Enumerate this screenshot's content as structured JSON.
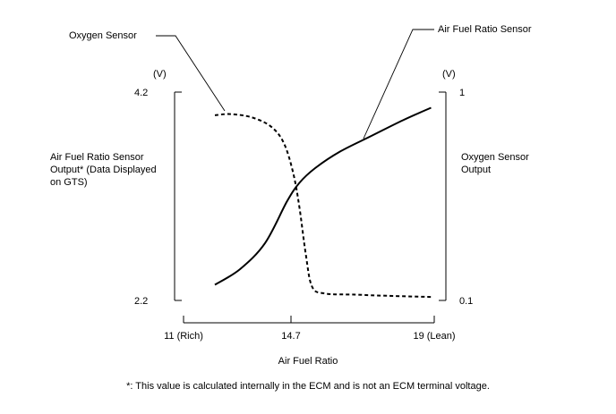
{
  "chart_data": {
    "type": "line",
    "xlabel": "Air Fuel Ratio",
    "x_ticks": [
      "11 (Rich)",
      "14.7",
      "19 (Lean)"
    ],
    "xlim": [
      11,
      19
    ],
    "left_axis": {
      "label_lines": [
        "Air Fuel Ratio Sensor",
        "Output* (Data Displayed",
        "on GTS)"
      ],
      "unit": "(V)",
      "ticks": [
        "4.2",
        "2.2"
      ],
      "ylim": [
        2.2,
        4.2
      ]
    },
    "right_axis": {
      "label_lines": [
        "Oxygen Sensor",
        "Output"
      ],
      "unit": "(V)",
      "ticks": [
        "1",
        "0.1"
      ],
      "ylim": [
        0.1,
        1
      ]
    },
    "series": [
      {
        "name": "Air Fuel Ratio Sensor",
        "axis": "left",
        "style": "solid",
        "x": [
          12.0,
          12.8,
          13.6,
          14.3,
          14.7,
          15.2,
          16.0,
          17.0,
          18.0,
          18.9
        ],
        "y": [
          2.35,
          2.5,
          2.75,
          3.15,
          3.33,
          3.47,
          3.63,
          3.78,
          3.93,
          4.05
        ]
      },
      {
        "name": "Oxygen Sensor",
        "axis": "right",
        "style": "dashed",
        "x": [
          12.0,
          12.5,
          13.2,
          13.8,
          14.2,
          14.5,
          14.7,
          14.9,
          15.1,
          15.5,
          16.5,
          17.5,
          18.9
        ],
        "y": [
          0.9,
          0.905,
          0.89,
          0.85,
          0.78,
          0.65,
          0.5,
          0.3,
          0.16,
          0.13,
          0.125,
          0.12,
          0.115
        ]
      }
    ],
    "footnote": "*: This value is calculated internally in the ECM and is not an ECM terminal voltage."
  }
}
